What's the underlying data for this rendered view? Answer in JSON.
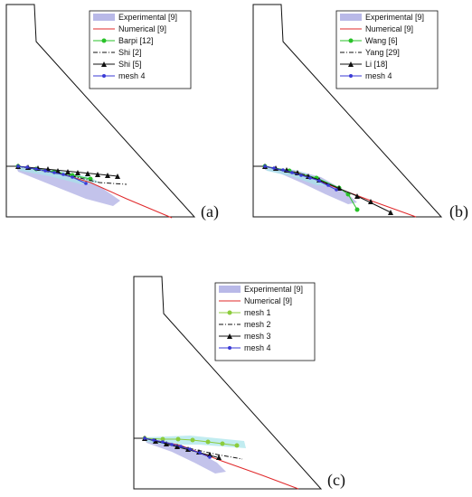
{
  "panels": [
    {
      "label": "(a)",
      "legend": [
        {
          "name": "Experimental [9]",
          "style": "band",
          "color": "#b9b9e8"
        },
        {
          "name": "Numerical [9]",
          "style": "line",
          "color": "#e0282a"
        },
        {
          "name": "Barpi [12]",
          "style": "circle",
          "color": "#29c229"
        },
        {
          "name": "Shi [2]",
          "style": "dashdot",
          "color": "#111111"
        },
        {
          "name": "Shi [5]",
          "style": "triangle",
          "color": "#111111"
        },
        {
          "name": "mesh 4",
          "style": "star",
          "color": "#3a3ad6"
        }
      ]
    },
    {
      "label": "(b)",
      "legend": [
        {
          "name": "Experimental [9]",
          "style": "band",
          "color": "#b9b9e8"
        },
        {
          "name": "Numerical [9]",
          "style": "line",
          "color": "#e0282a"
        },
        {
          "name": "Wang [6]",
          "style": "circle",
          "color": "#29c229"
        },
        {
          "name": "Yang [29]",
          "style": "dashdot",
          "color": "#111111"
        },
        {
          "name": "Li [18]",
          "style": "triangle",
          "color": "#111111"
        },
        {
          "name": "mesh 4",
          "style": "star",
          "color": "#3a3ad6"
        }
      ]
    },
    {
      "label": "(c)",
      "legend": [
        {
          "name": "Experimental [9]",
          "style": "band",
          "color": "#b9b9e8"
        },
        {
          "name": "Numerical [9]",
          "style": "line",
          "color": "#e0282a"
        },
        {
          "name": "mesh 1",
          "style": "circle",
          "color": "#8ccc3c"
        },
        {
          "name": "mesh 2",
          "style": "dashdot",
          "color": "#111111"
        },
        {
          "name": "mesh 3",
          "style": "triangle",
          "color": "#111111"
        },
        {
          "name": "mesh 4",
          "style": "star",
          "color": "#3a3ad6"
        }
      ]
    }
  ]
}
